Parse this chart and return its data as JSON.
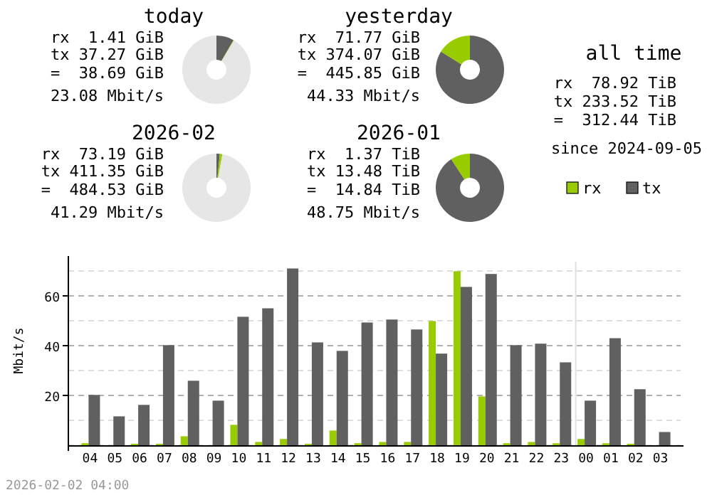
{
  "chart_data": [
    {
      "type": "donut",
      "title": "today",
      "categories": [
        null,
        null,
        null
      ],
      "values": [
        8.3,
        0.3,
        91.4
      ],
      "colors": [
        "#606060",
        "#99cc00",
        "#e6e6e6"
      ],
      "annotations": [
        "rx  1.41 GiB",
        "tx 37.27 GiB",
        "=  38.69 GiB",
        "23.08 Mbit/s"
      ]
    },
    {
      "type": "donut",
      "title": "yesterday",
      "categories": [
        null,
        null
      ],
      "values": [
        83.9,
        16.1
      ],
      "colors": [
        "#606060",
        "#99cc00"
      ],
      "annotations": [
        "rx  71.77 GiB",
        "tx 374.07 GiB",
        "=  445.85 GiB",
        "44.33 Mbit/s"
      ]
    },
    {
      "type": "other",
      "title": "all time",
      "annotations": [
        "rx  78.92 TiB",
        "tx 233.52 TiB",
        "=  312.44 TiB",
        "since 2024-09-05"
      ]
    },
    {
      "type": "donut",
      "title": "2026-02",
      "categories": [
        null,
        null,
        null
      ],
      "values": [
        1.6,
        1.2,
        97.2
      ],
      "colors": [
        "#606060",
        "#99cc00",
        "#e6e6e6"
      ],
      "annotations": [
        "rx  73.19 GiB",
        "tx 411.35 GiB",
        "=  484.53 GiB",
        "41.29 Mbit/s"
      ]
    },
    {
      "type": "donut",
      "title": "2026-01",
      "categories": [
        null,
        null
      ],
      "values": [
        90.8,
        9.2
      ],
      "colors": [
        "#606060",
        "#99cc00"
      ],
      "annotations": [
        "rx  1.37 TiB",
        "tx 13.48 TiB",
        "=  14.84 TiB",
        "48.75 Mbit/s"
      ]
    },
    {
      "type": "bar",
      "ylabel": "Mbit/s",
      "categories": [
        "04",
        "05",
        "06",
        "07",
        "08",
        "09",
        "10",
        "11",
        "12",
        "13",
        "14",
        "15",
        "16",
        "17",
        "18",
        "19",
        "20",
        "21",
        "22",
        "23",
        "00",
        "01",
        "02",
        "03"
      ],
      "series": [
        {
          "name": "rx",
          "color": "#99cc00",
          "values": [
            0.8,
            0,
            0.6,
            0.6,
            3.6,
            0,
            8.2,
            1.3,
            2.5,
            0.6,
            5.9,
            0.8,
            1.3,
            1.3,
            49.9,
            69.9,
            19.6,
            0.8,
            1.3,
            0.8,
            2.5,
            0.8,
            0.6,
            0
          ]
        },
        {
          "name": "tx",
          "color": "#606060",
          "values": [
            20.2,
            11.6,
            16.2,
            40.2,
            25.9,
            17.9,
            51.6,
            55.0,
            71.0,
            41.3,
            37.9,
            49.3,
            50.5,
            46.5,
            36.8,
            63.6,
            68.8,
            40.2,
            40.8,
            33.3,
            17.9,
            43.0,
            22.5,
            5.3
          ]
        }
      ],
      "ylim": [
        0,
        76
      ],
      "yticks": [
        {
          "value": 0,
          "label": null
        },
        {
          "value": 10,
          "label": null
        },
        20,
        {
          "value": 30,
          "label": null
        },
        40,
        {
          "value": 50,
          "label": null
        },
        60,
        {
          "value": 70,
          "label": null
        }
      ],
      "grid": "y",
      "legend": "top right",
      "ref_lines": [
        {
          "axis": "x",
          "value": "00",
          "color": "#e0e0e0"
        }
      ],
      "annotations": [
        "2026-02-02 04:00"
      ]
    }
  ]
}
